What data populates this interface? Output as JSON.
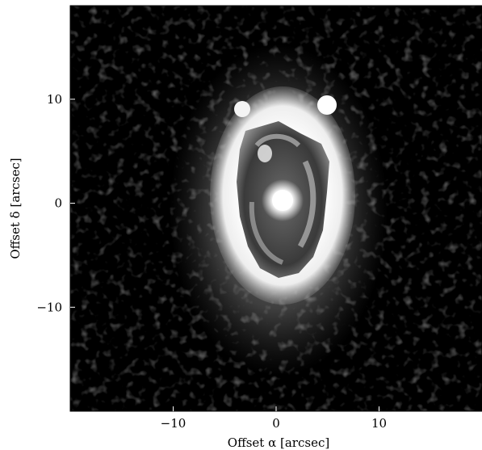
{
  "figure": {
    "xlabel": "Offset α [arcsec]",
    "ylabel": "Offset δ [arcsec]",
    "x_ticks": [
      {
        "value": -10,
        "label": "−10"
      },
      {
        "value": 0,
        "label": "0"
      },
      {
        "value": 10,
        "label": "10"
      }
    ],
    "y_ticks": [
      {
        "value": 10,
        "label": "10"
      },
      {
        "value": 0,
        "label": "0"
      },
      {
        "value": -10,
        "label": "−10"
      }
    ],
    "x_range": [
      -20,
      20
    ],
    "y_range": [
      -20,
      19
    ],
    "colormap": "grayscale"
  }
}
